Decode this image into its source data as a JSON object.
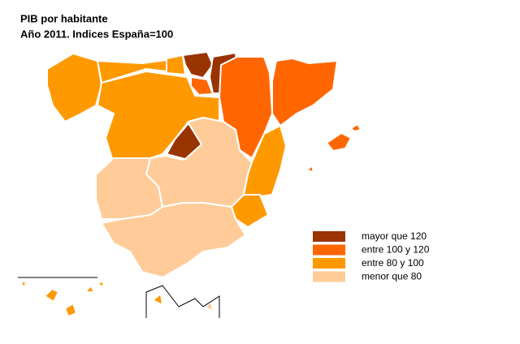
{
  "title": "PIB por habitante",
  "subtitle": "Año 2011. Indices España=100",
  "legend": [
    {
      "label": "mayor que 120",
      "color": "#993300"
    },
    {
      "label": "entre 100 y 120",
      "color": "#ff6600"
    },
    {
      "label": "entre 80 y 100",
      "color": "#ff9900"
    },
    {
      "label": "menor que 80",
      "color": "#ffcc99"
    }
  ]
}
